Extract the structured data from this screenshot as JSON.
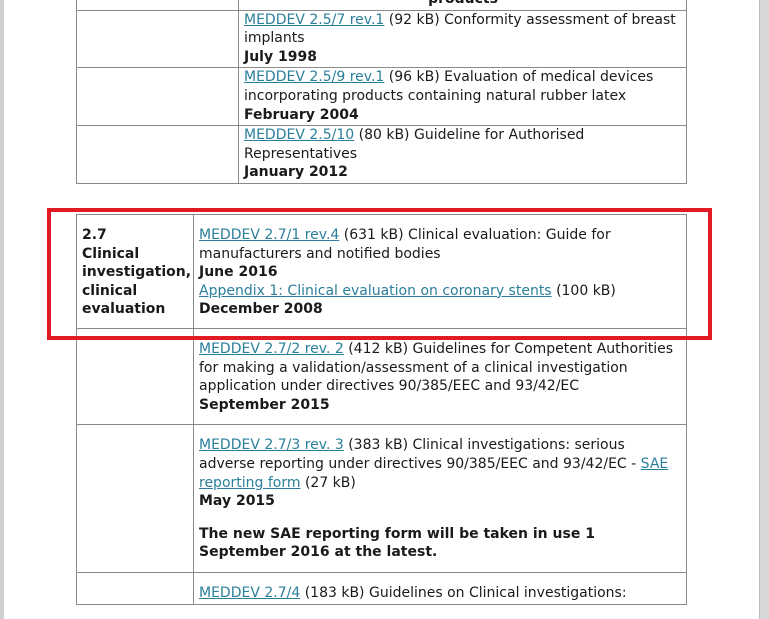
{
  "top_table": {
    "partial_header": "products",
    "rows": [
      {
        "link": "MEDDEV 2.5/7 rev.1",
        "size": "(92 kB)",
        "desc": "Conformity assessment of breast implants",
        "date": "July 1998"
      },
      {
        "link": "MEDDEV 2.5/9 rev.1",
        "size": "(96 kB)",
        "desc": "Evaluation of medical devices incorporating products containing natural rubber latex",
        "date": "February 2004"
      },
      {
        "link": "MEDDEV 2.5/10",
        "size": "(80 kB)",
        "desc": "Guideline for Authorised Representatives",
        "date": "January 2012"
      }
    ]
  },
  "section": {
    "number": "2.7",
    "title": "Clinical investigation, clinical evaluation",
    "rows": [
      {
        "link": "MEDDEV 2.7/1 rev.4",
        "size": "(631 kB)",
        "desc": "Clinical evaluation: Guide for manufacturers and notified bodies",
        "date": "June 2016",
        "appendix_link": "Appendix 1: Clinical evaluation on coronary stents",
        "appendix_size": "(100 kB)",
        "appendix_date": "December 2008"
      },
      {
        "link": "MEDDEV 2.7/2 rev. 2",
        "size": "(412 kB)",
        "desc": "Guidelines for Competent Authorities for making a validation/assessment of a clinical investigation application under directives 90/385/EEC and 93/42/EC",
        "date": "September 2015"
      },
      {
        "link": "MEDDEV 2.7/3 rev. 3",
        "size": "(383 kB)",
        "desc": "Clinical investigations: serious adverse reporting under directives 90/385/EEC and 93/42/EC -",
        "extra_link": "SAE reporting form",
        "extra_size": "(27 kB)",
        "date": "May 2015",
        "notice": "The new SAE reporting form will be taken in use 1 September 2016 at the latest."
      },
      {
        "link": "MEDDEV 2.7/4",
        "size": "(183 kB)",
        "desc": "Guidelines on Clinical investigations:"
      }
    ]
  },
  "highlight_color": "#e01b24",
  "link_color": "#2a7f9a"
}
